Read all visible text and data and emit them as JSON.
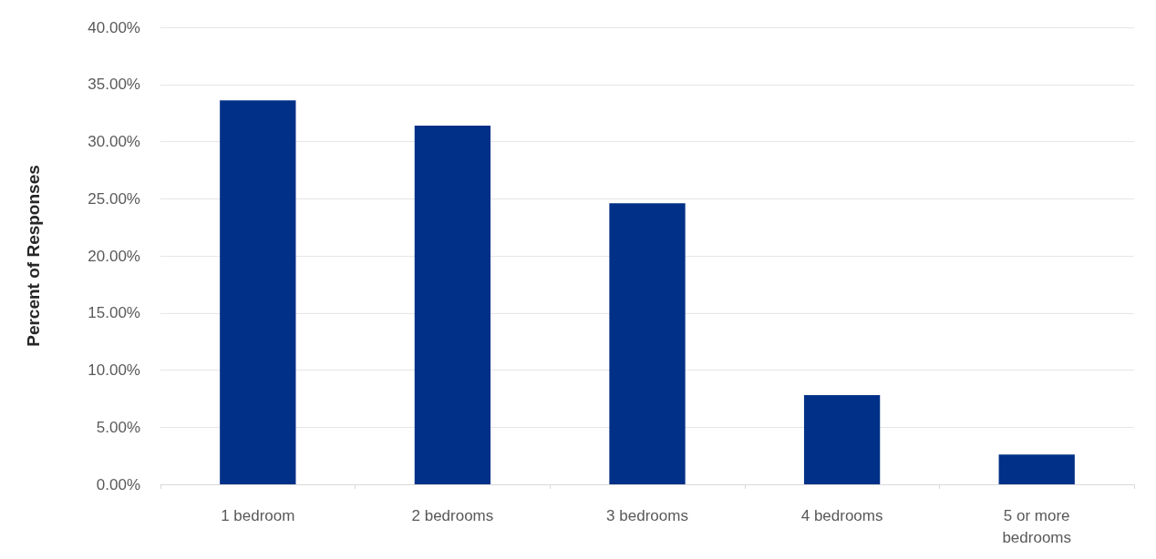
{
  "chart_data": {
    "type": "bar",
    "ylabel": "Percent of Responses",
    "categories": [
      "1 bedroom",
      "2 bedrooms",
      "3 bedrooms",
      "4 bedrooms",
      "5 or more bedrooms"
    ],
    "values": [
      33.6,
      31.4,
      24.6,
      7.8,
      2.6
    ],
    "color": "#003087",
    "ylim": [
      0,
      40
    ],
    "yticks": [
      {
        "value": 0,
        "label": "0.00%"
      },
      {
        "value": 5,
        "label": "5.00%"
      },
      {
        "value": 10,
        "label": "10.00%"
      },
      {
        "value": 15,
        "label": "15.00%"
      },
      {
        "value": 20,
        "label": "20.00%"
      },
      {
        "value": 25,
        "label": "25.00%"
      },
      {
        "value": 30,
        "label": "30.00%"
      },
      {
        "value": 35,
        "label": "35.00%"
      },
      {
        "value": 40,
        "label": "40.00%"
      }
    ],
    "grid": "y"
  }
}
